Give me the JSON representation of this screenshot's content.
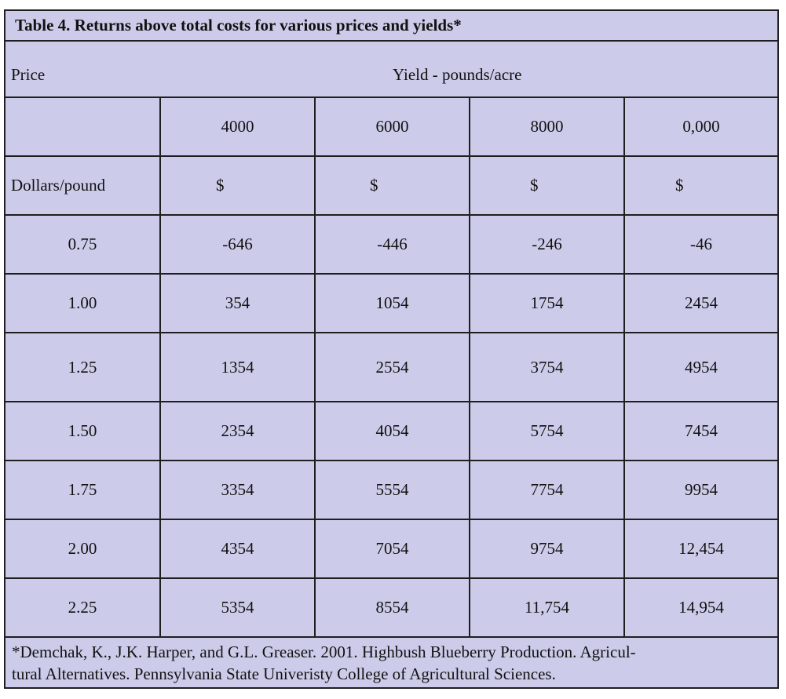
{
  "title": "Table 4.  Returns above total costs for various prices and yields*",
  "header": {
    "price_label": "Price",
    "yield_label": "Yield - pounds/acre"
  },
  "yield_columns": [
    "4000",
    "6000",
    "8000",
    "0,000"
  ],
  "units_row": {
    "label": "Dollars/pound",
    "symbols": [
      "$",
      "$",
      "$",
      "$"
    ]
  },
  "rows": [
    {
      "price": "0.75",
      "values": [
        "-646",
        "-446",
        "-246",
        "-46"
      ]
    },
    {
      "price": "1.00",
      "values": [
        "354",
        "1054",
        "1754",
        "2454"
      ]
    },
    {
      "price": "1.25",
      "values": [
        "1354",
        "2554",
        "3754",
        "4954"
      ]
    },
    {
      "price": "1.50",
      "values": [
        "2354",
        "4054",
        "5754",
        "7454"
      ]
    },
    {
      "price": "1.75",
      "values": [
        "3354",
        "5554",
        "7754",
        "9954"
      ]
    },
    {
      "price": "2.00",
      "values": [
        "4354",
        "7054",
        "9754",
        "12,454"
      ]
    },
    {
      "price": "2.25",
      "values": [
        "5354",
        "8554",
        "11,754",
        "14,954"
      ]
    }
  ],
  "footnote": {
    "line1": "*Demchak, K., J.K. Harper, and G.L. Greaser.  2001.  Highbush Blueberry Production.  Agricul-",
    "line2": "tural Alternatives.  Pennsylvania State Univeristy College of Agricultural Sciences."
  },
  "colors": {
    "table_background": "#ccccea",
    "border": "#1f1f1f",
    "text": "#111111"
  }
}
